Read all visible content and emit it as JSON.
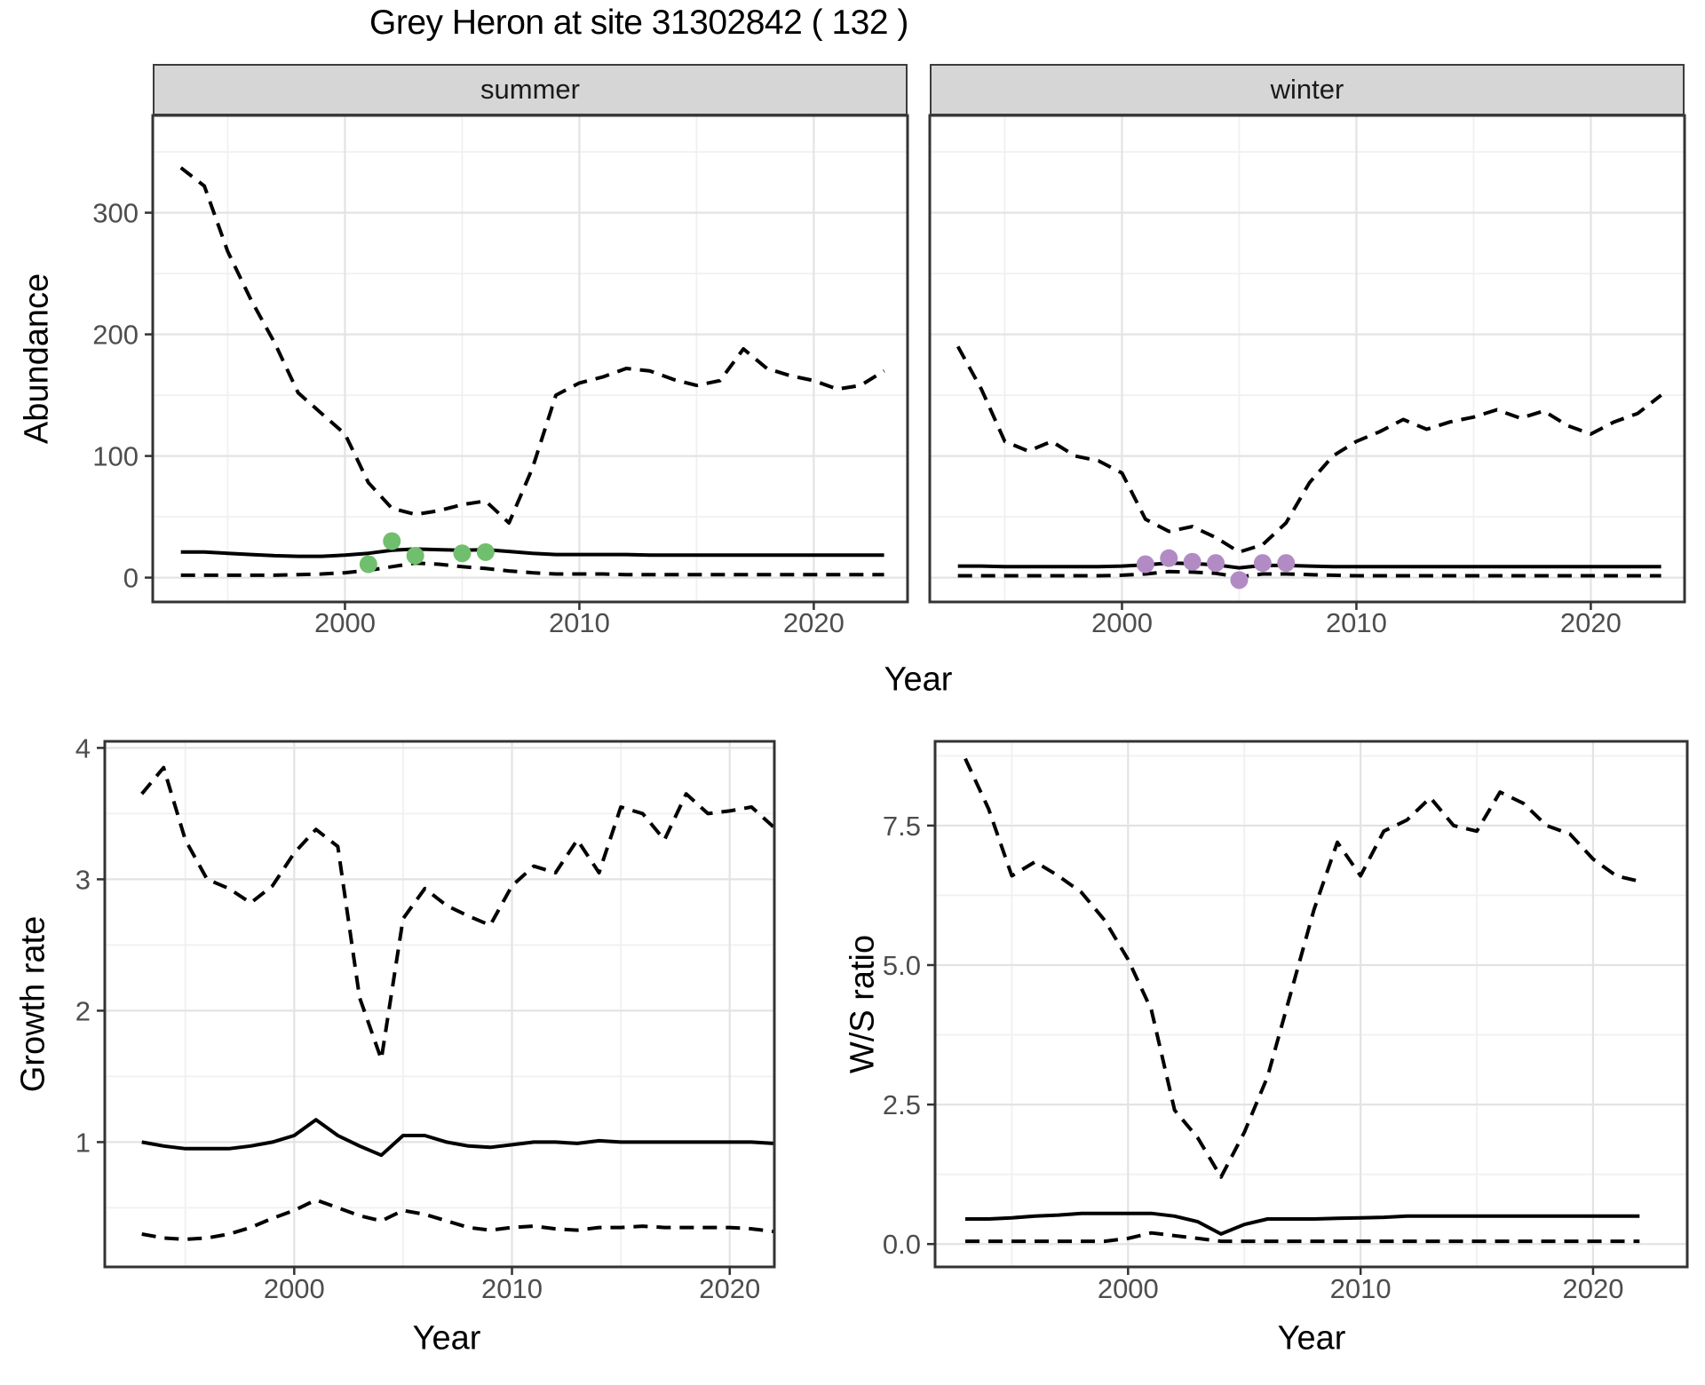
{
  "title": "Grey Heron at site 31302842 ( 132 )",
  "colors": {
    "summer_points": "#70bf6e",
    "winter_points": "#b28bc4",
    "line": "#000000",
    "grid_major": "#e3e3e3",
    "grid_minor": "#f0f0f0",
    "panel_border": "#333333",
    "strip_bg": "#d6d6d6",
    "axis_text": "#4d4d4d"
  },
  "chart_data": [
    {
      "id": "abundance-summer",
      "type": "line",
      "facet_label": "summer",
      "ylabel": "Abundance",
      "xlabel": "Year",
      "x_domain": [
        1991.8,
        2024.0
      ],
      "y_domain": [
        -20,
        380
      ],
      "x_ticks": [
        2000,
        2010,
        2020
      ],
      "x_tick_labels": [
        "2000",
        "2010",
        "2020"
      ],
      "x_minor": [
        1995,
        2005,
        2015
      ],
      "y_ticks": [
        0,
        100,
        200,
        300
      ],
      "y_tick_labels": [
        "0",
        "100",
        "200",
        "300"
      ],
      "y_minor": [
        50,
        150,
        250,
        350
      ],
      "x": [
        1993,
        1994,
        1995,
        1996,
        1997,
        1998,
        1999,
        2000,
        2001,
        2002,
        2003,
        2004,
        2005,
        2006,
        2007,
        2008,
        2009,
        2010,
        2011,
        2012,
        2013,
        2014,
        2015,
        2016,
        2017,
        2018,
        2019,
        2020,
        2021,
        2022,
        2023
      ],
      "series": [
        {
          "name": "upper_ci",
          "line_style": "dashed",
          "values": [
            337,
            322,
            268,
            228,
            193,
            152,
            135,
            118,
            78,
            57,
            52,
            55,
            60,
            63,
            45,
            90,
            150,
            160,
            165,
            172,
            170,
            163,
            158,
            162,
            188,
            172,
            166,
            162,
            155,
            158,
            170
          ]
        },
        {
          "name": "estimate",
          "line_style": "solid",
          "values": [
            21,
            21,
            20,
            19,
            18,
            17.5,
            17.5,
            18.5,
            20,
            22.5,
            23.5,
            23,
            22.5,
            23,
            21.5,
            20,
            19,
            19,
            19,
            19,
            18.5,
            18.5,
            18.5,
            18.5,
            18.5,
            18.5,
            18.5,
            18.5,
            18.5,
            18.5,
            18.5
          ]
        },
        {
          "name": "lower_ci",
          "line_style": "dashed",
          "values": [
            2,
            2,
            2,
            2,
            2,
            2.5,
            3,
            4,
            6,
            9,
            12,
            11,
            9,
            7.5,
            5.5,
            4,
            3,
            3,
            3,
            2.5,
            2.5,
            2.5,
            2.5,
            2.5,
            2.5,
            2.5,
            2.5,
            2.5,
            2.5,
            2.5,
            2.5
          ]
        }
      ],
      "points": {
        "name": "observed-counts",
        "x": [
          2001,
          2002,
          2003,
          2005,
          2006
        ],
        "y": [
          11,
          30,
          18,
          20,
          21
        ],
        "color": "#70bf6e"
      }
    },
    {
      "id": "abundance-winter",
      "type": "line",
      "facet_label": "winter",
      "ylabel": "Abundance",
      "xlabel": "Year",
      "x_domain": [
        1991.8,
        2024.0
      ],
      "y_domain": [
        -20,
        380
      ],
      "x_ticks": [
        2000,
        2010,
        2020
      ],
      "x_tick_labels": [
        "2000",
        "2010",
        "2020"
      ],
      "x_minor": [
        1995,
        2005,
        2015
      ],
      "y_ticks": [
        0,
        100,
        200,
        300
      ],
      "y_tick_labels": [
        "0",
        "100",
        "200",
        "300"
      ],
      "y_minor": [
        50,
        150,
        250,
        350
      ],
      "x": [
        1993,
        1994,
        1995,
        1996,
        1997,
        1998,
        1999,
        2000,
        2001,
        2002,
        2003,
        2004,
        2005,
        2006,
        2007,
        2008,
        2009,
        2010,
        2011,
        2012,
        2013,
        2014,
        2015,
        2016,
        2017,
        2018,
        2019,
        2020,
        2021,
        2022,
        2023
      ],
      "series": [
        {
          "name": "upper_ci",
          "line_style": "dashed",
          "values": [
            190,
            155,
            112,
            104,
            112,
            100,
            96,
            86,
            48,
            38,
            42,
            33,
            21,
            27,
            45,
            78,
            100,
            112,
            120,
            130,
            122,
            128,
            132,
            138,
            131,
            137,
            125,
            118,
            128,
            135,
            150
          ]
        },
        {
          "name": "estimate",
          "line_style": "solid",
          "values": [
            9.5,
            9.5,
            9,
            9,
            9,
            9,
            9,
            9.5,
            10.5,
            12,
            11.5,
            10.5,
            8,
            10,
            10,
            9.5,
            9,
            9,
            9,
            9,
            9,
            9,
            9,
            9,
            9,
            9,
            9,
            9,
            9,
            9,
            9
          ]
        },
        {
          "name": "lower_ci",
          "line_style": "dashed",
          "values": [
            1.5,
            1.5,
            1.5,
            1.5,
            1.5,
            1.5,
            1.5,
            2,
            3,
            5,
            4.5,
            3.5,
            0.5,
            3,
            3,
            2.5,
            2,
            1.5,
            1.5,
            1.5,
            1.5,
            1.5,
            1.5,
            1.5,
            1.5,
            1.5,
            1.5,
            1.5,
            1.5,
            1.5,
            1.5
          ]
        }
      ],
      "points": {
        "name": "observed-counts",
        "x": [
          2001,
          2002,
          2003,
          2004,
          2005,
          2006,
          2007
        ],
        "y": [
          11,
          16,
          13,
          12,
          -2,
          12,
          12
        ],
        "color": "#b28bc4"
      }
    },
    {
      "id": "growth-rate",
      "type": "line",
      "facet_label": null,
      "ylabel": "Growth rate",
      "xlabel": "Year",
      "x_domain": [
        1991.3,
        2022.05
      ],
      "y_domain": [
        0.05,
        4.05
      ],
      "x_ticks": [
        2000,
        2010,
        2020
      ],
      "x_tick_labels": [
        "2000",
        "2010",
        "2020"
      ],
      "x_minor": [
        1995,
        2005,
        2015
      ],
      "y_ticks": [
        1,
        2,
        3,
        4
      ],
      "y_tick_labels": [
        "1",
        "2",
        "3",
        "4"
      ],
      "y_minor": [
        0.5,
        1.5,
        2.5,
        3.5
      ],
      "x": [
        1993,
        1994,
        1995,
        1996,
        1997,
        1998,
        1999,
        2000,
        2001,
        2002,
        2003,
        2004,
        2005,
        2006,
        2007,
        2008,
        2009,
        2010,
        2011,
        2012,
        2013,
        2014,
        2015,
        2016,
        2017,
        2018,
        2019,
        2020,
        2021,
        2022
      ],
      "series": [
        {
          "name": "upper_ci",
          "line_style": "dashed",
          "values": [
            3.65,
            3.85,
            3.3,
            3.0,
            2.93,
            2.82,
            2.95,
            3.2,
            3.38,
            3.25,
            2.1,
            1.63,
            2.7,
            2.93,
            2.8,
            2.72,
            2.65,
            2.95,
            3.1,
            3.05,
            3.3,
            3.05,
            3.55,
            3.5,
            3.3,
            3.65,
            3.5,
            3.52,
            3.55,
            3.4
          ]
        },
        {
          "name": "estimate",
          "line_style": "solid",
          "values": [
            1.0,
            0.97,
            0.95,
            0.95,
            0.95,
            0.97,
            1.0,
            1.05,
            1.17,
            1.05,
            0.97,
            0.9,
            1.05,
            1.05,
            1.0,
            0.97,
            0.96,
            0.98,
            1.0,
            1.0,
            0.99,
            1.01,
            1.0,
            1.0,
            1.0,
            1.0,
            1.0,
            1.0,
            1.0,
            0.99
          ]
        },
        {
          "name": "lower_ci",
          "line_style": "dashed",
          "values": [
            0.3,
            0.27,
            0.26,
            0.27,
            0.3,
            0.35,
            0.42,
            0.48,
            0.56,
            0.5,
            0.44,
            0.4,
            0.48,
            0.45,
            0.4,
            0.35,
            0.33,
            0.35,
            0.36,
            0.34,
            0.33,
            0.35,
            0.35,
            0.36,
            0.35,
            0.35,
            0.35,
            0.35,
            0.34,
            0.32
          ]
        }
      ],
      "points": null
    },
    {
      "id": "ws-ratio",
      "type": "line",
      "facet_label": null,
      "ylabel": "W/S ratio",
      "xlabel": "Year",
      "x_domain": [
        1991.7,
        2024.05
      ],
      "y_domain": [
        -0.41,
        9.01
      ],
      "x_ticks": [
        2000,
        2010,
        2020
      ],
      "x_tick_labels": [
        "2000",
        "2010",
        "2020"
      ],
      "x_minor": [
        1995,
        2005,
        2015
      ],
      "y_ticks": [
        0.0,
        2.5,
        5.0,
        7.5
      ],
      "y_tick_labels": [
        "0.0",
        "2.5",
        "5.0",
        "7.5"
      ],
      "y_minor": [
        1.25,
        3.75,
        6.25,
        8.75
      ],
      "x": [
        1993,
        1994,
        1995,
        1996,
        1997,
        1998,
        1999,
        2000,
        2001,
        2002,
        2003,
        2004,
        2005,
        2006,
        2007,
        2008,
        2009,
        2010,
        2011,
        2012,
        2013,
        2014,
        2015,
        2016,
        2017,
        2018,
        2019,
        2020,
        2021,
        2022
      ],
      "series": [
        {
          "name": "upper_ci",
          "line_style": "dashed",
          "values": [
            8.7,
            7.8,
            6.6,
            6.85,
            6.6,
            6.3,
            5.8,
            5.1,
            4.2,
            2.4,
            1.9,
            1.2,
            2.0,
            3.0,
            4.5,
            6.0,
            7.2,
            6.6,
            7.4,
            7.6,
            8.0,
            7.5,
            7.4,
            8.1,
            7.9,
            7.5,
            7.35,
            6.9,
            6.6,
            6.5
          ]
        },
        {
          "name": "estimate",
          "line_style": "solid",
          "values": [
            0.45,
            0.45,
            0.47,
            0.5,
            0.52,
            0.55,
            0.55,
            0.55,
            0.55,
            0.5,
            0.4,
            0.18,
            0.35,
            0.45,
            0.45,
            0.45,
            0.46,
            0.47,
            0.48,
            0.5,
            0.5,
            0.5,
            0.5,
            0.5,
            0.5,
            0.5,
            0.5,
            0.5,
            0.5,
            0.5
          ]
        },
        {
          "name": "lower_ci",
          "line_style": "dashed",
          "values": [
            0.05,
            0.05,
            0.05,
            0.05,
            0.05,
            0.05,
            0.05,
            0.1,
            0.2,
            0.15,
            0.1,
            0.05,
            0.05,
            0.05,
            0.05,
            0.05,
            0.05,
            0.05,
            0.05,
            0.05,
            0.05,
            0.05,
            0.05,
            0.05,
            0.05,
            0.05,
            0.05,
            0.05,
            0.05,
            0.05
          ]
        }
      ],
      "points": null
    }
  ]
}
